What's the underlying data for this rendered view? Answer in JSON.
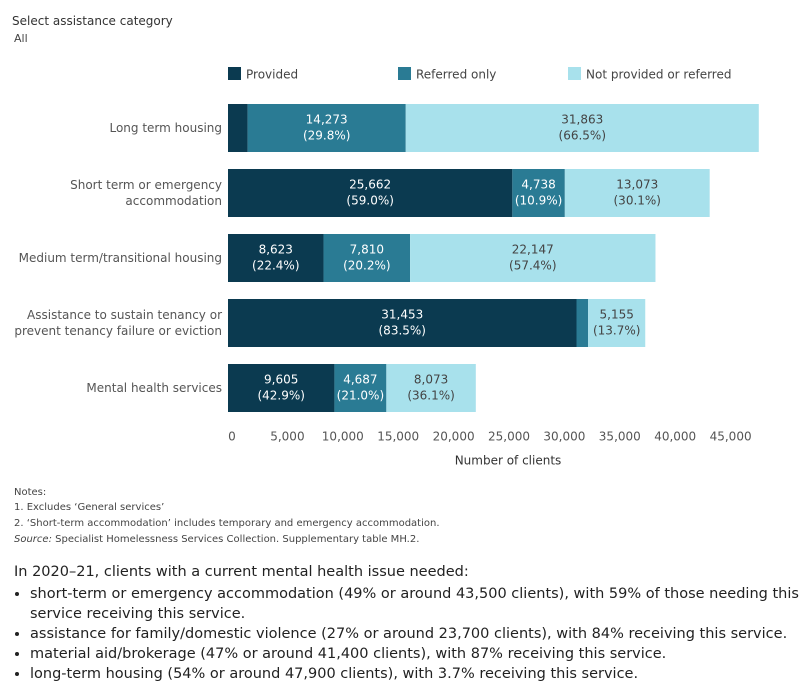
{
  "filter": {
    "label": "Select assistance category",
    "value": "All"
  },
  "chart_data": {
    "type": "stacked-bar-horizontal",
    "categories": [
      "Long term housing",
      "Short term or emergency accommodation",
      "Medium term/transitional housing",
      "Assistance to sustain tenancy or prevent tenancy failure or eviction",
      "Mental health services"
    ],
    "series": [
      {
        "name": "Provided",
        "color": "#0b3a50",
        "values": [
          1770,
          25662,
          8623,
          31453,
          9605
        ],
        "value_labels": [
          null,
          "25,662",
          "8,623",
          "31,453",
          "9,605"
        ],
        "percent_labels": [
          null,
          "(59.0%)",
          "(22.4%)",
          "(83.5%)",
          "(42.9%)"
        ]
      },
      {
        "name": "Referred only",
        "color": "#2a7b94",
        "values": [
          14273,
          4738,
          7810,
          1050,
          4687
        ],
        "value_labels": [
          "14,273",
          "4,738",
          "7,810",
          null,
          "4,687"
        ],
        "percent_labels": [
          "(29.8%)",
          "(10.9%)",
          "(20.2%)",
          null,
          "(21.0%)"
        ]
      },
      {
        "name": "Not provided or referred",
        "color": "#a8e1ec",
        "values": [
          31863,
          13073,
          22147,
          5155,
          8073
        ],
        "value_labels": [
          "31,863",
          "13,073",
          "22,147",
          "5,155",
          "8,073"
        ],
        "percent_labels": [
          "(66.5%)",
          "(30.1%)",
          "(57.4%)",
          "(13.7%)",
          "(36.1%)"
        ]
      }
    ],
    "xlabel": "Number of clients",
    "xlim": [
      0,
      50000
    ],
    "xticks": [
      0,
      {
        "value": 5000,
        "label": "5,000"
      },
      {
        "value": 10000,
        "label": "10,000"
      },
      {
        "value": 15000,
        "label": "15,000"
      },
      {
        "value": 20000,
        "label": "20,000"
      },
      {
        "value": 25000,
        "label": "25,000"
      },
      {
        "value": 30000,
        "label": "30,000"
      },
      {
        "value": 35000,
        "label": "35,000"
      },
      {
        "value": 40000,
        "label": "40,000"
      },
      {
        "value": 45000,
        "label": "45,000"
      }
    ],
    "legend": "top"
  },
  "notes": {
    "heading": "Notes:",
    "lines": [
      "1. Excludes ‘General services’",
      "2. ‘Short-term accommodation’ includes temporary and emergency accommodation."
    ],
    "source_label": "Source:",
    "source": "Specialist Homelessness Services Collection. Supplementary table MH.2."
  },
  "summary": {
    "intro": "In 2020–21, clients with a current mental health issue needed:",
    "bullets": [
      "short-term or emergency accommodation (49% or around 43,500 clients), with 59% of those needing this service receiving this service.",
      "assistance for family/domestic violence (27% or around  23,700 clients), with 84% receiving this service.",
      "material aid/brokerage (47% or around 41,400 clients), with 87% receiving this service.",
      "long-term housing (54% or around  47,900 clients), with 3.7% receiving this service."
    ]
  }
}
